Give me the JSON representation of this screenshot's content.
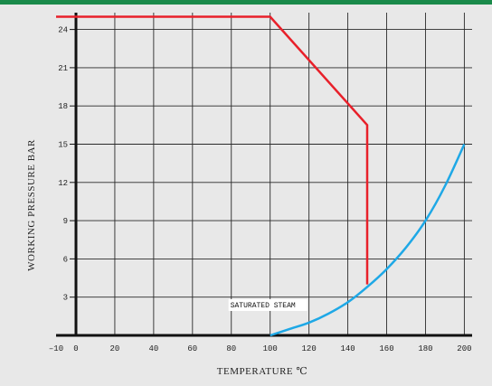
{
  "chart_data": {
    "type": "line",
    "xlabel": "TEMPERATURE ℃",
    "ylabel": "WORKING PRESSURE BAR",
    "xlim": [
      -10,
      205
    ],
    "ylim": [
      0,
      25
    ],
    "x_ticks": [
      -10,
      0,
      20,
      40,
      60,
      80,
      100,
      120,
      140,
      160,
      180,
      200
    ],
    "y_ticks": [
      3,
      6,
      9,
      12,
      15,
      18,
      21,
      24
    ],
    "grid": true,
    "series": [
      {
        "color": "#e8202a",
        "points": [
          [
            -10,
            25
          ],
          [
            100,
            25
          ],
          [
            150,
            16.5
          ],
          [
            150,
            4
          ]
        ]
      },
      {
        "name": "SATURATED STEAM",
        "color": "#1ea8e6",
        "points": [
          [
            100,
            0
          ],
          [
            110,
            0.5
          ],
          [
            120,
            1.0
          ],
          [
            130,
            1.7
          ],
          [
            140,
            2.6
          ],
          [
            150,
            3.8
          ],
          [
            160,
            5.2
          ],
          [
            170,
            6.9
          ],
          [
            180,
            9.0
          ],
          [
            190,
            11.7
          ],
          [
            200,
            15.0
          ]
        ]
      }
    ],
    "annotations": [
      {
        "text": "SATURATED STEAM",
        "x": 100,
        "y": 2.2
      }
    ]
  }
}
